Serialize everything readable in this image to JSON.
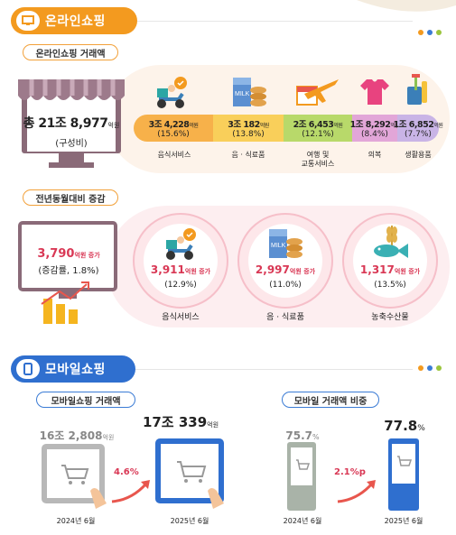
{
  "online": {
    "section_title": "온라인쇼핑",
    "total_label": "온라인쇼핑 거래액",
    "total_main": "총 21조 8,977",
    "total_unit": "억원",
    "total_note": "(구성비)",
    "categories": [
      {
        "value": "3조 4,228",
        "unit": "억원",
        "share": "(15.6%)",
        "name": "음식서비스",
        "icon": "delivery-scooter-icon"
      },
      {
        "value": "3조 182",
        "unit": "억원",
        "share": "(13.8%)",
        "name": "음 · 식료품",
        "icon": "milk-bread-icon"
      },
      {
        "value": "2조 6,453",
        "unit": "억원",
        "share": "(12.1%)",
        "name": "여행 및\n교통서비스",
        "icon": "airplane-calendar-icon"
      },
      {
        "value": "1조 8,292",
        "unit": "억원",
        "share": "(8.4%)",
        "name": "의복",
        "icon": "tshirt-icon"
      },
      {
        "value": "1조 6,852",
        "unit": "억원",
        "share": "(7.7%)",
        "name": "생활용품",
        "icon": "cup-brush-icon"
      }
    ],
    "yoy_label": "전년동월대비 증감",
    "yoy_main": "3,790",
    "yoy_unit": "억원 증가",
    "yoy_note": "(증감률, 1.8%)",
    "yoy_items": [
      {
        "value": "3,911",
        "unit": "억원 증가",
        "pct": "(12.9%)",
        "name": "음식서비스",
        "icon": "delivery-scooter-icon"
      },
      {
        "value": "2,997",
        "unit": "억원 증가",
        "pct": "(11.0%)",
        "name": "음 · 식료품",
        "icon": "milk-bread-icon"
      },
      {
        "value": "1,317",
        "unit": "억원 증가",
        "pct": "(13.5%)",
        "name": "농축수산물",
        "icon": "fish-wheat-icon"
      }
    ]
  },
  "mobile": {
    "section_title": "모바일쇼핑",
    "amount_label": "모바일쇼핑 거래액",
    "prev_amount": "16조 2,808",
    "prev_unit": "억원",
    "curr_amount": "17조 339",
    "curr_unit": "억원",
    "growth": "4.6%",
    "prev_month": "2024년 6월",
    "curr_month": "2025년 6월",
    "share_label": "모바일 거래액 비중",
    "prev_share": "75.7",
    "curr_share": "77.8",
    "share_unit": "%",
    "share_change": "2.1%p"
  },
  "colors": {
    "orange": "#f39a1f",
    "blue": "#2f6fcf",
    "pink": "#d93855",
    "cat1": "#f7b14a",
    "cat2": "#f9cf5a",
    "cat3": "#b8d96a",
    "cat4": "#e2a6d8",
    "cat5": "#c9b4e6"
  }
}
